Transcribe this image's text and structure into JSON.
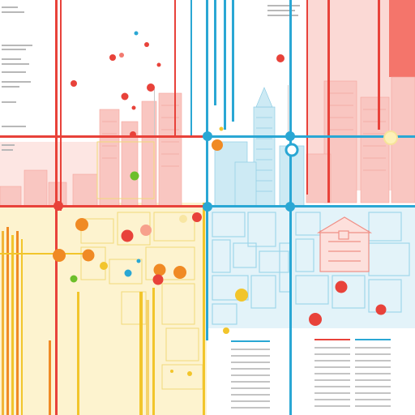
{
  "palette": {
    "background": "#ffffff",
    "red": "#e8423a",
    "red_light": "#f7b7b2",
    "blue": "#2aa7d4",
    "blue_light": "#a9dcec",
    "yellow": "#f2c52b",
    "yellow_light": "#f8e6a3",
    "orange": "#f08a24",
    "green": "#6cbf2a",
    "text_gray": "#9a9a9a"
  },
  "legible_text": []
}
